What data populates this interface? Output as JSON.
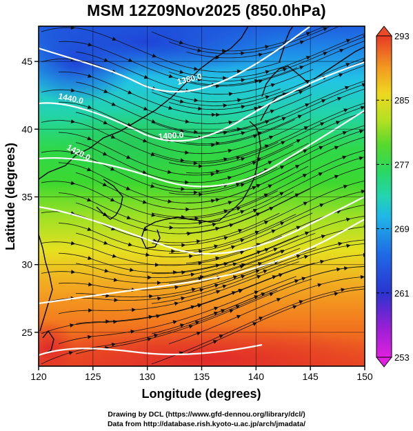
{
  "title": "MSM 12Z09Nov2025 (850.0hPa)",
  "x_axis": {
    "label": "Longitude (degrees)",
    "range": [
      120,
      150
    ],
    "ticks": [
      "120",
      "125",
      "130",
      "135",
      "140",
      "145",
      "150"
    ]
  },
  "y_axis": {
    "label": "Latitude  (degrees)",
    "range": [
      22.5,
      47.6
    ],
    "ticks": [
      "25",
      "30",
      "35",
      "40",
      "45"
    ]
  },
  "colorbar": {
    "range": [
      253,
      293
    ],
    "ticks": [
      "253",
      "261",
      "269",
      "277",
      "285",
      "293"
    ],
    "colors": [
      "#e020e0",
      "#8a1fd0",
      "#2a3cd8",
      "#1f7ae8",
      "#20c8e0",
      "#24d49a",
      "#2ed83a",
      "#8ee025",
      "#e0e020",
      "#f0a020",
      "#f06a1e",
      "#e43a28"
    ]
  },
  "contours": [
    {
      "label": "1440.0"
    },
    {
      "label": "1380.0"
    },
    {
      "label": "1400.0"
    },
    {
      "label": "1420.0"
    }
  ],
  "footer": {
    "line1": "Drawing by DCL (https://www.gfd-dennou.org/library/dcl/)",
    "line2": "Data from http://database.rish.kyoto-u.ac.jp/arch/jmadata/"
  }
}
